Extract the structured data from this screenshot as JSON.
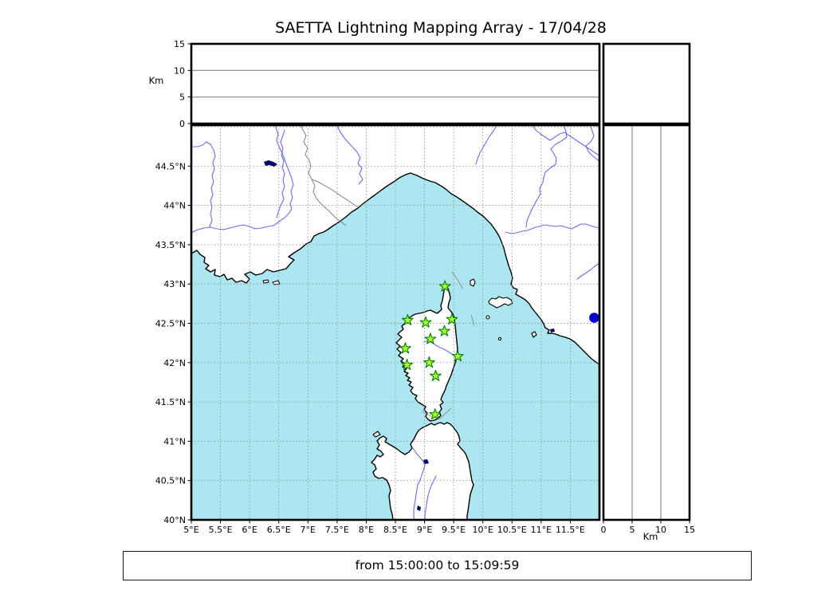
{
  "title": "SAETTA Lightning Mapping Array - 17/04/28",
  "caption": "from 15:00:00 to 15:09:59",
  "top_panel": {
    "axis_label": "Km",
    "ticks": [
      {
        "v": 0,
        "label": "0"
      },
      {
        "v": 5,
        "label": "5"
      },
      {
        "v": 10,
        "label": "10"
      },
      {
        "v": 15,
        "label": "15"
      }
    ],
    "range_km": [
      0,
      15
    ]
  },
  "right_panel": {
    "axis_label": "Km",
    "ticks": [
      {
        "v": 0,
        "label": "0"
      },
      {
        "v": 5,
        "label": "5"
      },
      {
        "v": 10,
        "label": "10"
      },
      {
        "v": 15,
        "label": "15"
      }
    ],
    "range_km": [
      0,
      15
    ]
  },
  "map": {
    "lon_ticks": [
      {
        "v": 5,
        "label": "5°E"
      },
      {
        "v": 5.5,
        "label": "5.5°E"
      },
      {
        "v": 6,
        "label": "6°E"
      },
      {
        "v": 6.5,
        "label": "6.5°E"
      },
      {
        "v": 7,
        "label": "7°E"
      },
      {
        "v": 7.5,
        "label": "7.5°E"
      },
      {
        "v": 8,
        "label": "8°E"
      },
      {
        "v": 8.5,
        "label": "8.5°E"
      },
      {
        "v": 9,
        "label": "9°E"
      },
      {
        "v": 9.5,
        "label": "9.5°E"
      },
      {
        "v": 10,
        "label": "10°E"
      },
      {
        "v": 10.5,
        "label": "10.5°E"
      },
      {
        "v": 11,
        "label": "11°E"
      },
      {
        "v": 11.5,
        "label": "11.5°E"
      }
    ],
    "lat_ticks": [
      {
        "v": 40,
        "label": "40°N"
      },
      {
        "v": 40.5,
        "label": "40.5°N"
      },
      {
        "v": 41,
        "label": "41°N"
      },
      {
        "v": 41.5,
        "label": "41.5°N"
      },
      {
        "v": 42,
        "label": "42°N"
      },
      {
        "v": 42.5,
        "label": "42.5°N"
      },
      {
        "v": 43,
        "label": "43°N"
      },
      {
        "v": 43.5,
        "label": "43.5°N"
      },
      {
        "v": 44,
        "label": "44°N"
      },
      {
        "v": 44.5,
        "label": "44.5°N"
      }
    ],
    "extra_grid_lats": [
      45
    ],
    "stations": [
      {
        "lon": 9.35,
        "lat": 42.97
      },
      {
        "lon": 8.71,
        "lat": 42.54
      },
      {
        "lon": 9.02,
        "lat": 42.51
      },
      {
        "lon": 9.47,
        "lat": 42.55
      },
      {
        "lon": 9.34,
        "lat": 42.4
      },
      {
        "lon": 9.1,
        "lat": 42.3
      },
      {
        "lon": 8.67,
        "lat": 42.18
      },
      {
        "lon": 9.57,
        "lat": 42.08
      },
      {
        "lon": 8.7,
        "lat": 41.97
      },
      {
        "lon": 9.08,
        "lat": 42.0
      },
      {
        "lon": 9.19,
        "lat": 41.83
      },
      {
        "lon": 9.18,
        "lat": 41.34
      }
    ],
    "event_dot": {
      "lon": 11.91,
      "lat": 42.57
    },
    "colors": {
      "sea": "#ace7f1",
      "land": "#ffffff",
      "coast": "#000000",
      "river": "#6b6be8",
      "lake": "#000066",
      "country_border": "#808080",
      "grid": "#909090",
      "station_fill": "#adff2f",
      "station_edge": "#008000",
      "event_dot": "#0000cc"
    }
  }
}
